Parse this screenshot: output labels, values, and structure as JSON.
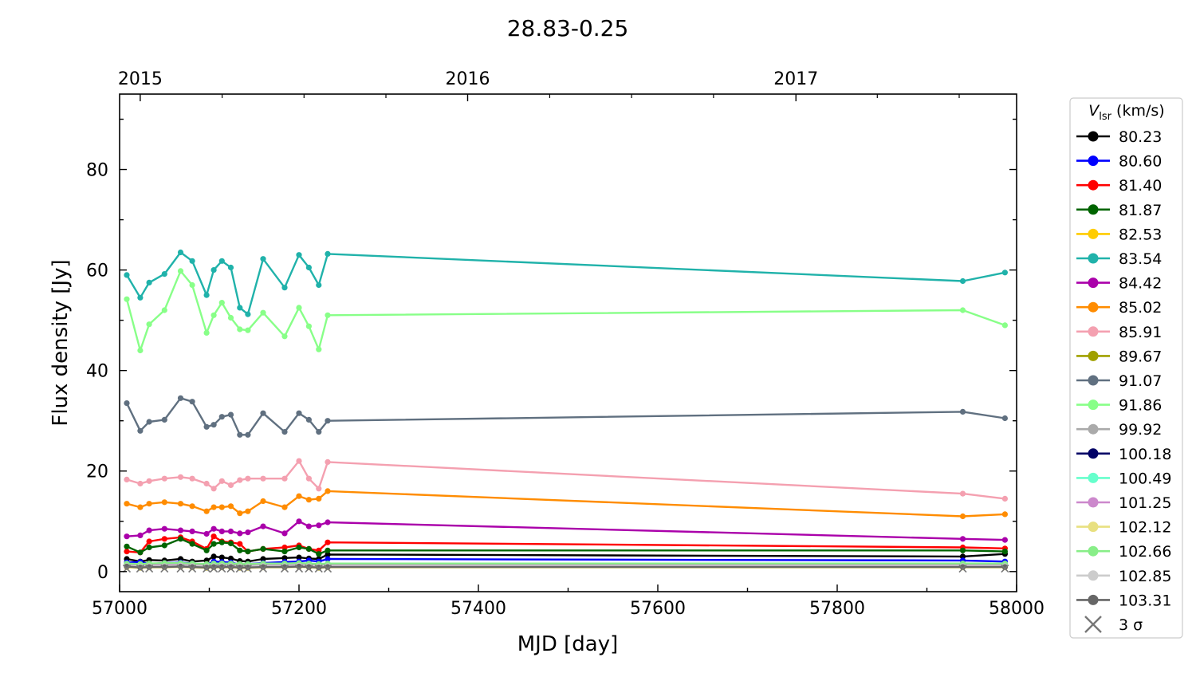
{
  "chart_data": {
    "type": "line",
    "title": "28.83-0.25",
    "xlabel": "MJD [day]",
    "ylabel": "Flux density [Jy]",
    "xlim": [
      57000,
      58000
    ],
    "ylim": [
      -4,
      95
    ],
    "xticks": [
      57000,
      57200,
      57400,
      57600,
      57800,
      58000
    ],
    "yticks": [
      0,
      20,
      40,
      60,
      80
    ],
    "top_axis": {
      "labels": [
        "2015",
        "2016",
        "2017"
      ],
      "mjd": [
        57023,
        57388,
        57754
      ]
    },
    "legend": {
      "title_main": "V",
      "title_sub": "lsr",
      "title_unit": " (km/s)",
      "placement": "outside-right",
      "upper_limit_label": "3 σ",
      "upper_limit_color": "#777777"
    },
    "x": [
      57008,
      57023,
      57033,
      57050,
      57068,
      57081,
      57097,
      57105,
      57114,
      57124,
      57134,
      57143,
      57160,
      57184,
      57200,
      57211,
      57222,
      57232,
      57940,
      57987
    ],
    "series": [
      {
        "name": "80.23",
        "color": "#000000",
        "values": [
          2.5,
          2.0,
          2.3,
          2.2,
          2.5,
          2.0,
          2.2,
          3.0,
          2.8,
          2.6,
          2.1,
          2.0,
          2.5,
          2.7,
          2.8,
          2.6,
          2.5,
          3.4,
          3.0,
          3.5
        ]
      },
      {
        "name": "80.60",
        "color": "#0000ff",
        "values": [
          1.8,
          1.9,
          1.5,
          1.7,
          1.8,
          1.6,
          1.4,
          2.0,
          1.9,
          1.8,
          1.4,
          1.5,
          1.7,
          1.9,
          2.0,
          2.2,
          2.0,
          2.5,
          2.2,
          2.0
        ]
      },
      {
        "name": "81.40",
        "color": "#ff0000",
        "values": [
          4.0,
          3.8,
          6.0,
          6.5,
          6.8,
          6.0,
          4.5,
          7.0,
          6.0,
          5.8,
          5.5,
          4.0,
          4.5,
          4.8,
          5.2,
          4.5,
          4.2,
          5.8,
          4.8,
          4.6
        ]
      },
      {
        "name": "81.87",
        "color": "#006400",
        "values": [
          5.0,
          3.8,
          4.8,
          5.2,
          6.5,
          5.5,
          4.2,
          5.5,
          5.8,
          5.6,
          4.2,
          4.0,
          4.5,
          4.0,
          4.8,
          4.5,
          3.5,
          4.2,
          4.2,
          4.0
        ]
      },
      {
        "name": "82.53",
        "color": "#ffcc00",
        "values": [
          1.2,
          1.0,
          1.1,
          1.2,
          1.3,
          1.1,
          1.0,
          1.2,
          1.3,
          1.1,
          1.0,
          1.0,
          1.1,
          1.2,
          1.3,
          1.2,
          1.1,
          1.3,
          1.2,
          1.1
        ]
      },
      {
        "name": "83.54",
        "color": "#20b2aa",
        "values": [
          59.0,
          54.5,
          57.5,
          59.2,
          63.5,
          61.8,
          55.0,
          60.0,
          61.8,
          60.5,
          52.5,
          51.2,
          62.2,
          56.5,
          63.0,
          60.5,
          57.0,
          63.2,
          57.8,
          59.5
        ]
      },
      {
        "name": "84.42",
        "color": "#aa00aa",
        "values": [
          7.0,
          7.2,
          8.2,
          8.5,
          8.2,
          8.0,
          7.5,
          8.5,
          8.0,
          8.0,
          7.6,
          7.8,
          9.0,
          7.6,
          10.0,
          9.0,
          9.2,
          9.8,
          6.5,
          6.3
        ]
      },
      {
        "name": "85.02",
        "color": "#ff8c00",
        "values": [
          13.5,
          12.8,
          13.5,
          13.8,
          13.5,
          13.0,
          12.0,
          12.8,
          12.8,
          13.0,
          11.6,
          12.0,
          14.0,
          12.8,
          15.0,
          14.3,
          14.5,
          16.0,
          11.0,
          11.4
        ]
      },
      {
        "name": "85.91",
        "color": "#f4a0b0",
        "values": [
          18.3,
          17.5,
          18.0,
          18.5,
          18.8,
          18.5,
          17.5,
          16.5,
          18.0,
          17.2,
          18.2,
          18.5,
          18.5,
          18.5,
          22.0,
          18.5,
          16.5,
          21.8,
          15.5,
          14.5
        ]
      },
      {
        "name": "89.67",
        "color": "#a0a000",
        "values": [
          1.5,
          1.4,
          1.5,
          1.6,
          1.6,
          1.5,
          1.4,
          1.5,
          1.6,
          1.5,
          1.4,
          1.4,
          1.5,
          1.5,
          1.6,
          1.5,
          1.4,
          1.5,
          1.4,
          1.4
        ]
      },
      {
        "name": "91.07",
        "color": "#607080",
        "values": [
          33.5,
          28.0,
          29.8,
          30.2,
          34.5,
          33.8,
          28.8,
          29.2,
          30.8,
          31.2,
          27.2,
          27.2,
          31.5,
          27.8,
          31.5,
          30.2,
          27.8,
          30.0,
          31.8,
          30.5
        ]
      },
      {
        "name": "91.86",
        "color": "#88ff88",
        "values": [
          54.2,
          44.0,
          49.2,
          52.0,
          59.8,
          57.0,
          47.5,
          51.0,
          53.5,
          50.5,
          48.2,
          48.0,
          51.5,
          46.8,
          52.5,
          48.8,
          44.2,
          51.0,
          52.0,
          49.0
        ]
      },
      {
        "name": "99.92",
        "color": "#aaaaaa",
        "values": [
          1.2,
          1.2,
          1.3,
          1.3,
          1.4,
          1.3,
          1.2,
          1.3,
          1.3,
          1.2,
          1.2,
          1.2,
          1.3,
          1.3,
          1.4,
          1.3,
          1.3,
          1.4,
          1.3,
          1.3
        ]
      },
      {
        "name": "100.18",
        "color": "#000066",
        "values": [
          1.0,
          0.9,
          1.0,
          1.1,
          1.1,
          1.0,
          0.9,
          1.0,
          1.1,
          1.0,
          0.9,
          0.9,
          1.0,
          1.0,
          1.1,
          1.0,
          0.9,
          1.0,
          1.0,
          1.0
        ]
      },
      {
        "name": "100.49",
        "color": "#66ffcc",
        "values": [
          1.5,
          1.4,
          1.5,
          1.6,
          1.6,
          1.5,
          1.4,
          1.5,
          1.5,
          1.5,
          1.4,
          1.4,
          1.5,
          1.5,
          1.6,
          1.5,
          1.4,
          1.5,
          1.5,
          1.5
        ]
      },
      {
        "name": "101.25",
        "color": "#cc88cc",
        "values": [
          1.3,
          1.2,
          1.3,
          1.3,
          1.4,
          1.3,
          1.2,
          1.3,
          1.3,
          1.3,
          1.2,
          1.2,
          1.3,
          1.3,
          1.4,
          1.3,
          1.2,
          1.3,
          1.3,
          1.3
        ]
      },
      {
        "name": "102.12",
        "color": "#e8e080",
        "values": [
          0.8,
          0.7,
          0.8,
          0.8,
          0.9,
          0.8,
          0.7,
          0.8,
          0.8,
          0.8,
          0.7,
          0.7,
          0.8,
          0.8,
          0.9,
          0.8,
          0.7,
          0.8,
          0.8,
          0.8
        ]
      },
      {
        "name": "102.66",
        "color": "#88ee88",
        "values": [
          1.6,
          1.5,
          1.6,
          1.7,
          1.7,
          1.6,
          1.5,
          1.6,
          1.6,
          1.6,
          1.5,
          1.5,
          1.6,
          1.6,
          1.7,
          1.6,
          1.5,
          1.6,
          1.6,
          1.6
        ]
      },
      {
        "name": "102.85",
        "color": "#cccccc",
        "values": [
          1.1,
          1.0,
          1.1,
          1.1,
          1.2,
          1.1,
          1.0,
          1.1,
          1.1,
          1.1,
          1.0,
          1.0,
          1.1,
          1.1,
          1.2,
          1.1,
          1.0,
          1.1,
          1.1,
          1.1
        ]
      },
      {
        "name": "103.31",
        "color": "#666666",
        "values": [
          1.0,
          0.8,
          0.9,
          0.9,
          1.0,
          0.9,
          0.8,
          0.9,
          0.9,
          0.9,
          0.8,
          0.8,
          0.9,
          0.9,
          1.0,
          0.9,
          0.8,
          0.9,
          0.9,
          0.9
        ]
      }
    ]
  }
}
